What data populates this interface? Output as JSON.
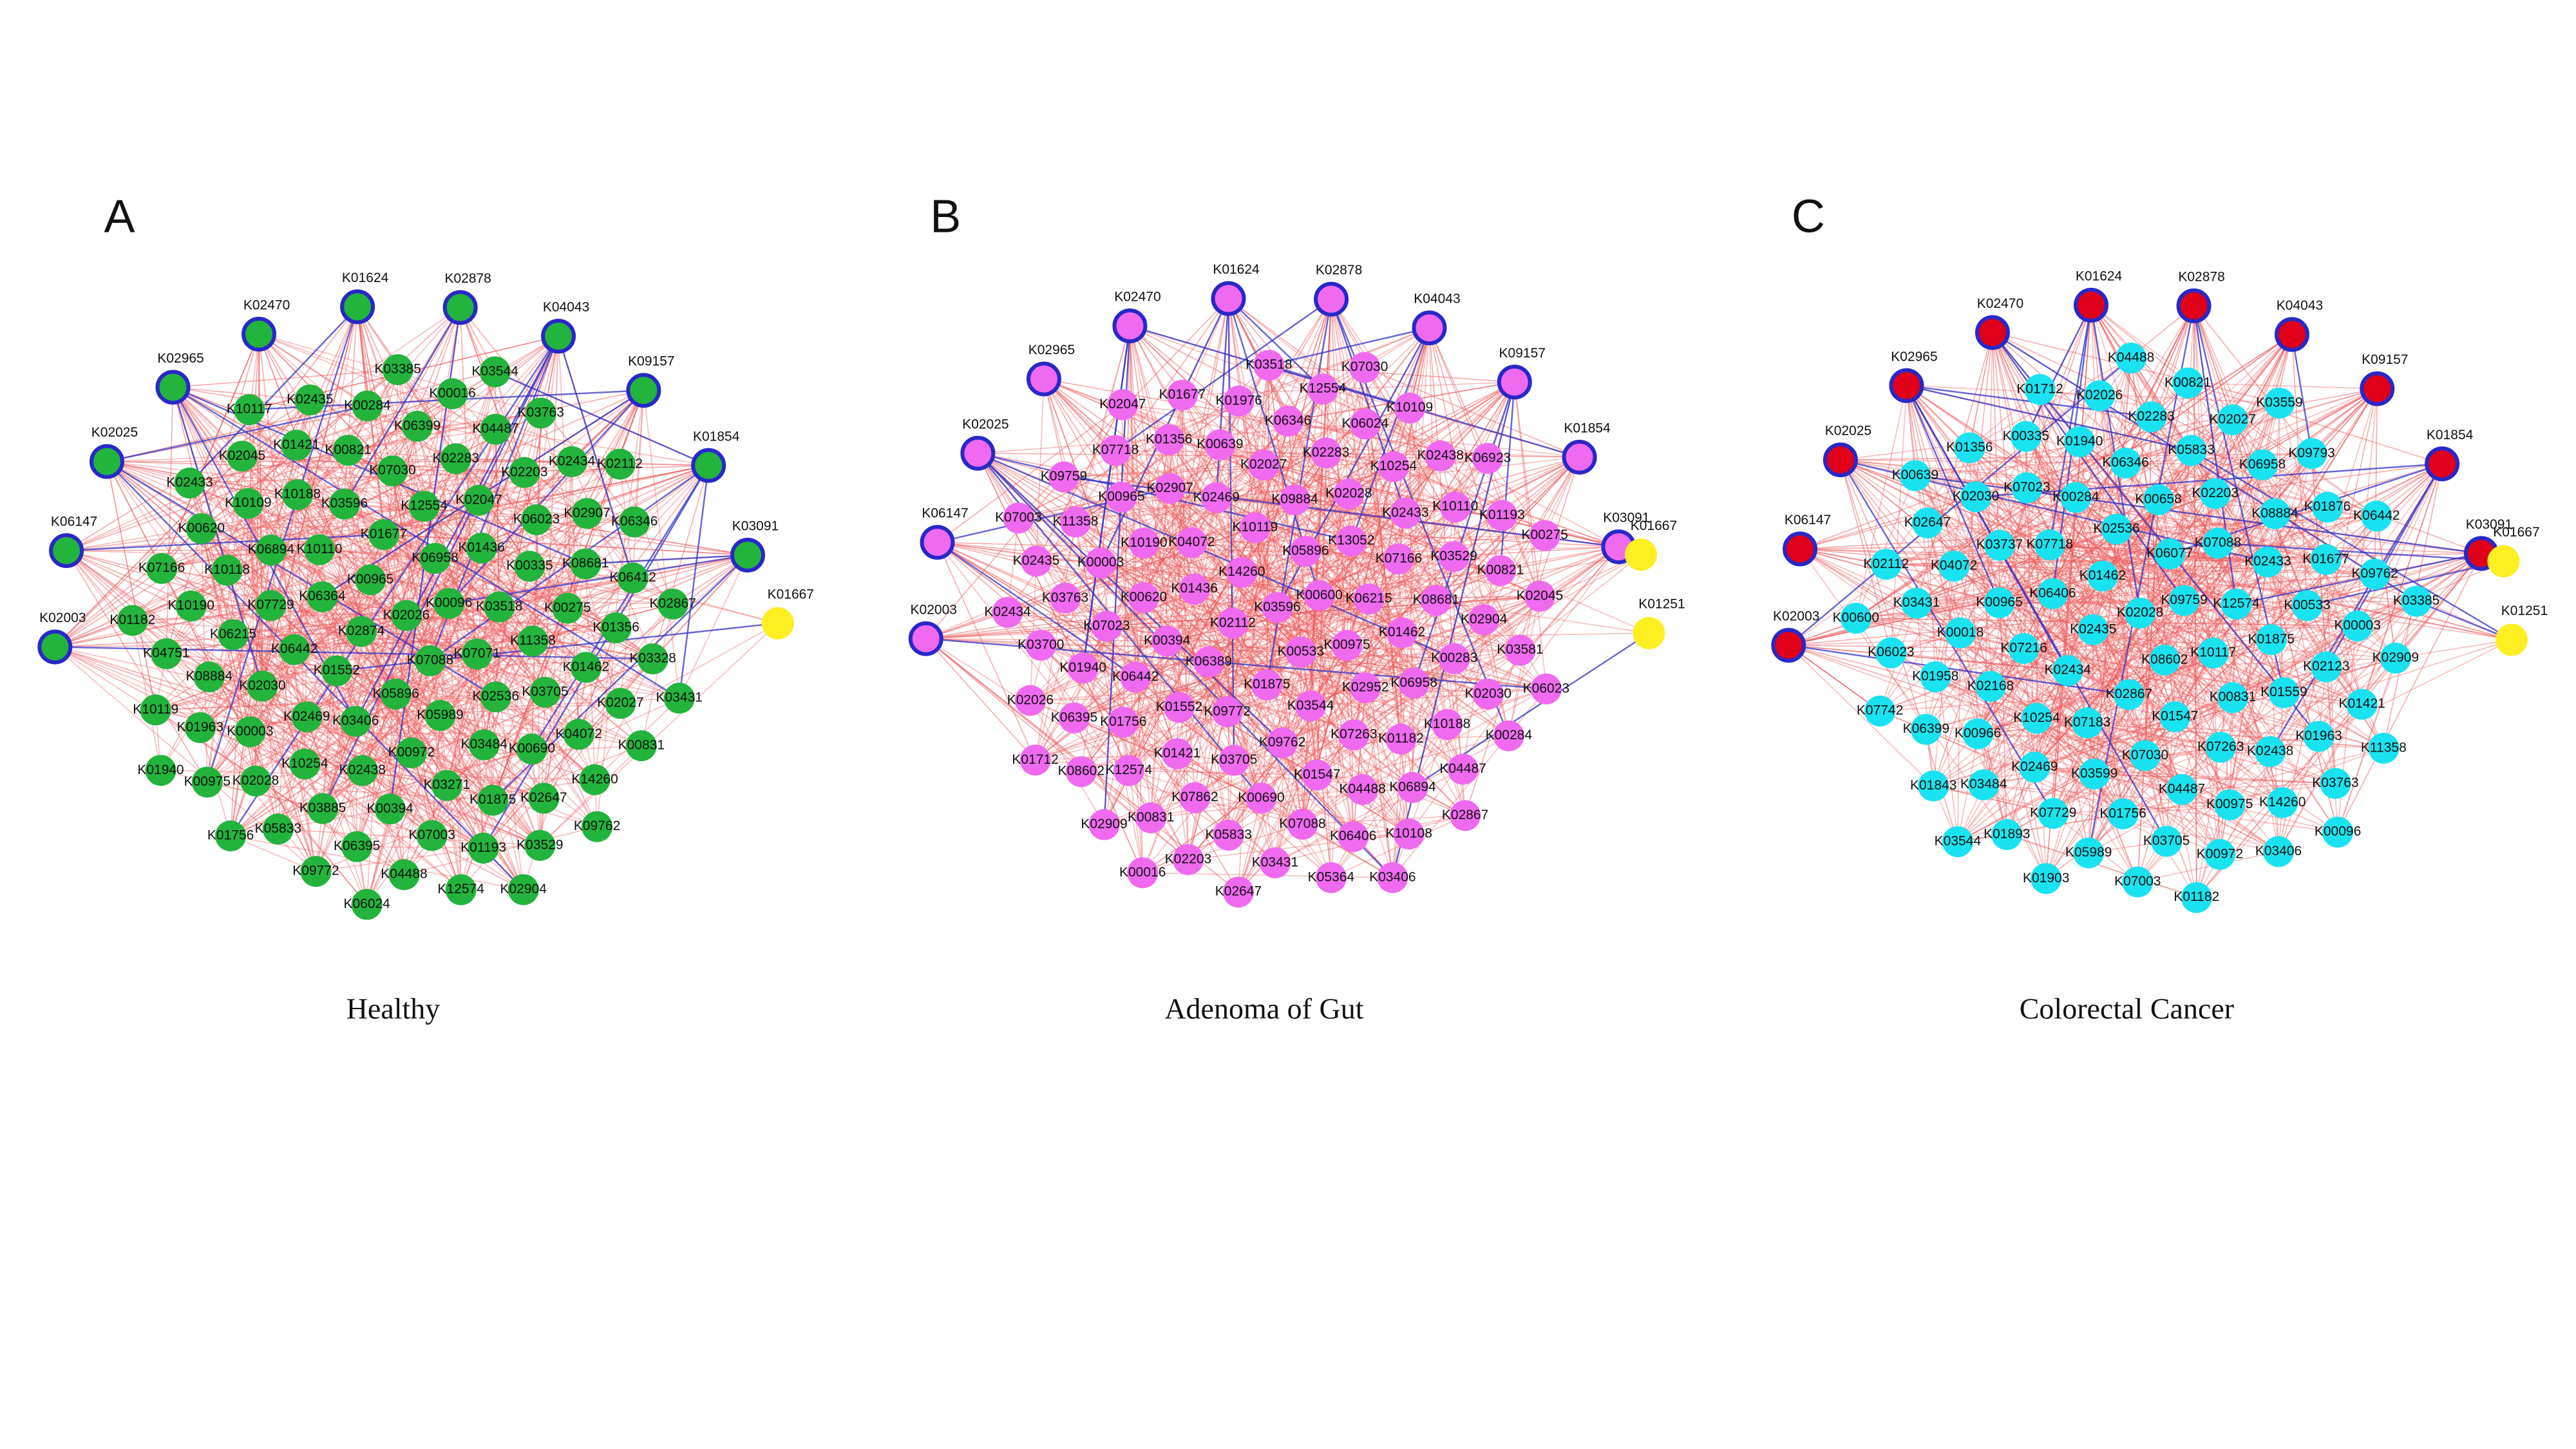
{
  "panels": [
    {
      "letter": "A",
      "caption": "Healthy",
      "node_color": "#22b43c",
      "outer_color": "#22b43c",
      "highlight_color": "#ffee22",
      "outer_nodes": [
        "K02003",
        "K06147",
        "K02025",
        "K02965",
        "K02470",
        "K01624",
        "K02878",
        "K04043",
        "K09157",
        "K01854",
        "K03091"
      ],
      "highlight_nodes": [
        "K01667"
      ],
      "inner_nodes": [
        "K02026",
        "K07088",
        "K02874",
        "K00096",
        "K05896",
        "K00965",
        "K07071",
        "K01552",
        "K06958",
        "K05989",
        "K06364",
        "K03518",
        "K03406",
        "K01677",
        "K02536",
        "K06442",
        "K01436",
        "K00972",
        "K10110",
        "K11358",
        "K02469",
        "K12554",
        "K03484",
        "K07729",
        "K00335",
        "K02438",
        "K03596",
        "K03705",
        "K02030",
        "K02047",
        "K03271",
        "K06894",
        "K00275",
        "K10254",
        "K07030",
        "K00690",
        "K06215",
        "K06023",
        "K00394",
        "K10188",
        "K01462",
        "K00003",
        "K02283",
        "K01875",
        "K10118",
        "K08681",
        "K03885",
        "K00821",
        "K04072",
        "K08884",
        "K02203",
        "K07003",
        "K10109",
        "K01356",
        "K02028",
        "K06399",
        "K02647",
        "K10190",
        "K02907",
        "K06395",
        "K01421",
        "K02027",
        "K01963",
        "K04487",
        "K01193",
        "K00620",
        "K06412",
        "K05833",
        "K00284",
        "K14260",
        "K04751",
        "K02434",
        "K04488",
        "K02045",
        "K03328",
        "K00975",
        "K00016",
        "K03529",
        "K07166",
        "K06346",
        "K09772",
        "K02435",
        "K00831",
        "K10119",
        "K03763",
        "K12574",
        "K02433",
        "K02867",
        "K01756",
        "K03385",
        "K09762",
        "K01182",
        "K02112",
        "K06024",
        "K10117",
        "K03431",
        "K01940",
        "K03544",
        "K02904"
      ]
    },
    {
      "letter": "B",
      "caption": "Adenoma of Gut",
      "node_color": "#f06af0",
      "outer_color": "#f06af0",
      "highlight_color": "#ffee22",
      "outer_nodes": [
        "K02003",
        "K06147",
        "K02025",
        "K02965",
        "K02470",
        "K01624",
        "K02878",
        "K04043",
        "K09157",
        "K01854",
        "K03091"
      ],
      "highlight_nodes": [
        "K01667",
        "K01251"
      ],
      "inner_nodes": [
        "K03596",
        "K00533",
        "K02112",
        "K00600",
        "K01875",
        "K14260",
        "K00975",
        "K06389",
        "K05896",
        "K03544",
        "K01436",
        "K06215",
        "K09772",
        "K10119",
        "K02952",
        "K00394",
        "K13052",
        "K09762",
        "K04072",
        "K01462",
        "K01552",
        "K09884",
        "K07263",
        "K00620",
        "K07166",
        "K03705",
        "K02469",
        "K06958",
        "K06442",
        "K02028",
        "K01547",
        "K10190",
        "K08681",
        "K01421",
        "K02027",
        "K01182",
        "K07023",
        "K02433",
        "K00690",
        "K02907",
        "K00283",
        "K01756",
        "K02283",
        "K04488",
        "K00003",
        "K03529",
        "K07862",
        "K00639",
        "K10188",
        "K01940",
        "K10254",
        "K07088",
        "K00965",
        "K02904",
        "K12574",
        "K06346",
        "K06894",
        "K03763",
        "K10110",
        "K05833",
        "K01356",
        "K02030",
        "K06395",
        "K06024",
        "K06406",
        "K11358",
        "K00821",
        "K00831",
        "K01976",
        "K04487",
        "K03700",
        "K02438",
        "K03431",
        "K07718",
        "K03581",
        "K08602",
        "K12554",
        "K10108",
        "K02435",
        "K01193",
        "K02203",
        "K01677",
        "K00284",
        "K02026",
        "K10109",
        "K05364",
        "K09759",
        "K02045",
        "K02909",
        "K03518",
        "K02867",
        "K02434",
        "K06923",
        "K02647",
        "K02047",
        "K06023",
        "K01712",
        "K07030",
        "K03406",
        "K07003",
        "K00275",
        "K00016"
      ]
    },
    {
      "letter": "C",
      "caption": "Colorectal Cancer",
      "node_color": "#19e3f0",
      "outer_color": "#e0001a",
      "highlight_color": "#ffee22",
      "outer_nodes": [
        "K02003",
        "K06147",
        "K02025",
        "K02965",
        "K02470",
        "K01624",
        "K02878",
        "K04043",
        "K09157",
        "K01854",
        "K03091"
      ],
      "highlight_nodes": [
        "K01667",
        "K01251"
      ],
      "inner_nodes": [
        "K02028",
        "K08602",
        "K02435",
        "K09759",
        "K02867",
        "K01462",
        "K10117",
        "K02434",
        "K06077",
        "K01547",
        "K06406",
        "K12574",
        "K07183",
        "K02536",
        "K00831",
        "K07216",
        "K07088",
        "K07030",
        "K07718",
        "K01875",
        "K10254",
        "K00658",
        "K07263",
        "K00965",
        "K02433",
        "K03599",
        "K00284",
        "K01559",
        "K02168",
        "K02203",
        "K04487",
        "K03737",
        "K00533",
        "K02469",
        "K06346",
        "K02438",
        "K00018",
        "K08884",
        "K01756",
        "K07023",
        "K02123",
        "K00966",
        "K05833",
        "K00975",
        "K04072",
        "K01677",
        "K07729",
        "K01940",
        "K01963",
        "K01958",
        "K06958",
        "K03705",
        "K02030",
        "K00003",
        "K03484",
        "K02283",
        "K14260",
        "K03431",
        "K01876",
        "K05989",
        "K00335",
        "K01421",
        "K06399",
        "K02027",
        "K00972",
        "K02647",
        "K09762",
        "K01893",
        "K02026",
        "K03763",
        "K06023",
        "K09793",
        "K07003",
        "K01356",
        "K02909",
        "K01843",
        "K00821",
        "K03406",
        "K02112",
        "K06442",
        "K01903",
        "K01712",
        "K11358",
        "K07742",
        "K03559",
        "K01182",
        "K00639",
        "K03385",
        "K03544",
        "K04488",
        "K00096",
        "K00600"
      ]
    }
  ]
}
